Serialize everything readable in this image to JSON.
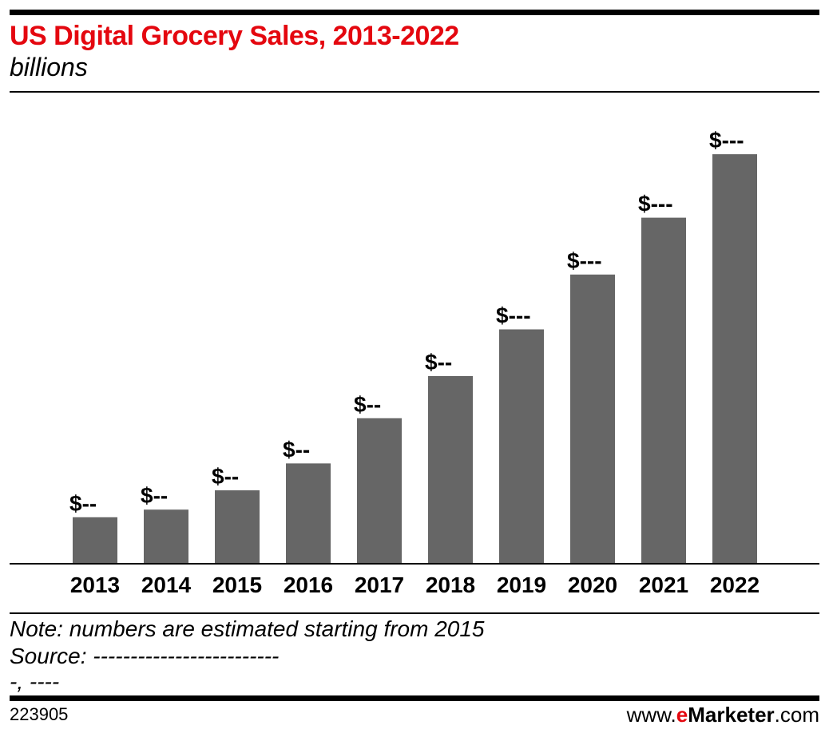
{
  "chart_data": {
    "type": "bar",
    "title": "US Digital Grocery Sales, 2013-2022",
    "subtitle": "billions",
    "categories": [
      "2013",
      "2014",
      "2015",
      "2016",
      "2017",
      "2018",
      "2019",
      "2020",
      "2021",
      "2022"
    ],
    "values": [
      9.0,
      10.5,
      14.3,
      19.6,
      28.5,
      36.8,
      46.0,
      56.8,
      68.0,
      80.5
    ],
    "data_labels": [
      "$--",
      "$--",
      "$--",
      "$--",
      "$--",
      "$--",
      "$---",
      "$---",
      "$---",
      "$---"
    ],
    "ylim": [
      0,
      92
    ],
    "grid": false,
    "bar_color": "#666666"
  },
  "note": "Note: numbers are estimated starting from 2015",
  "source": "Source: -------------------------",
  "source_line2": "-, ----",
  "chart_id": "223905",
  "brand": {
    "prefix": "www.",
    "e": "e",
    "rest": "Marketer",
    "suffix": ".com"
  },
  "colors": {
    "accent": "#e4070f",
    "bar": "#666666"
  }
}
